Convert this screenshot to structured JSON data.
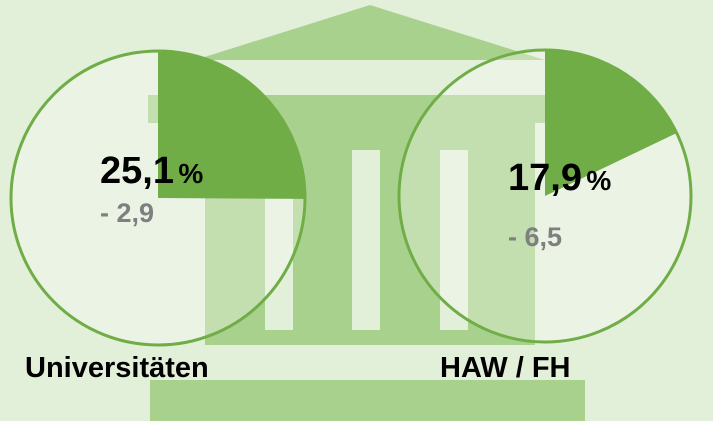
{
  "chart_data": [
    {
      "type": "pie",
      "label": "Universitäten",
      "values": [
        25.1
      ],
      "value_labels": [
        "25,1"
      ],
      "unit": "%",
      "change": "- 2,9",
      "color": "#70ad47"
    },
    {
      "type": "pie",
      "label": "HAW / FH",
      "values": [
        17.9
      ],
      "value_labels": [
        "17,9"
      ],
      "unit": "%",
      "change": "- 6,5",
      "color": "#70ad47"
    }
  ]
}
